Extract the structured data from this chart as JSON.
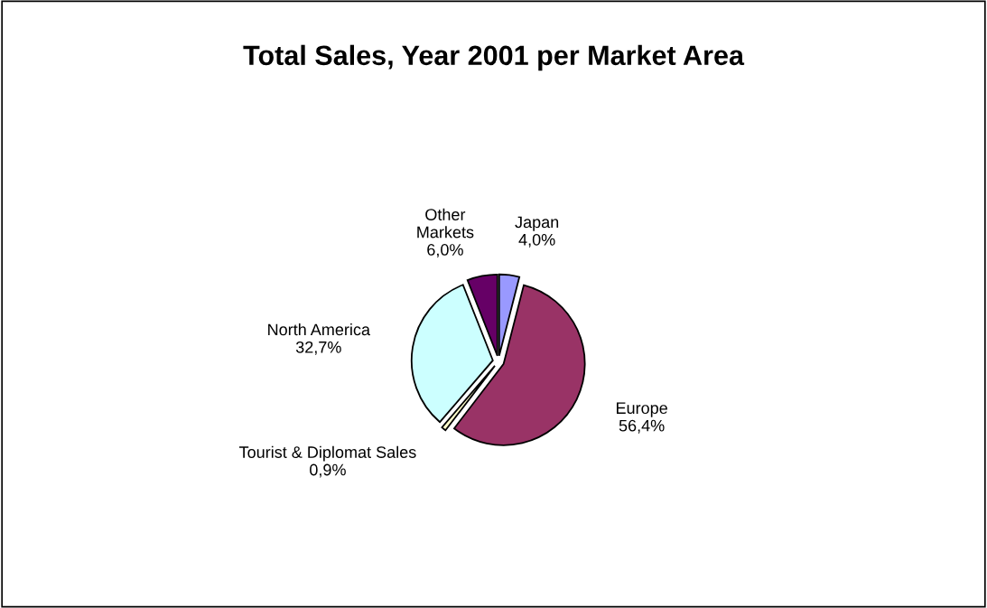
{
  "chart_data": {
    "type": "pie",
    "title": "Total Sales, Year 2001 per Market Area",
    "categories": [
      "Japan",
      "Europe",
      "Tourist & Diplomat Sales",
      "North America",
      "Other Markets"
    ],
    "values": [
      4.0,
      56.4,
      0.9,
      32.7,
      6.0
    ],
    "value_labels": [
      "4,0%",
      "56,4%",
      "0,9%",
      "32,7%",
      "6,0%"
    ],
    "colors": [
      "#9999ff",
      "#993366",
      "#ffffcc",
      "#ccffff",
      "#660066"
    ],
    "legend": false
  }
}
